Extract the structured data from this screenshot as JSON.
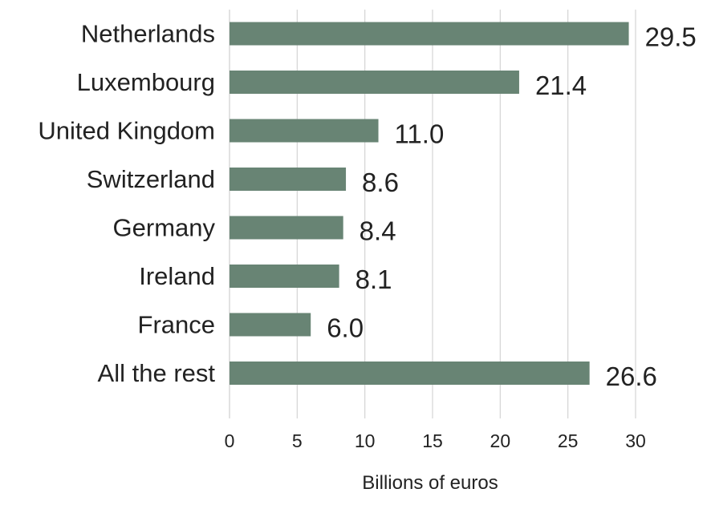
{
  "chart_data": {
    "type": "bar",
    "orientation": "horizontal",
    "categories": [
      "Netherlands",
      "Luxembourg",
      "United Kingdom",
      "Switzerland",
      "Germany",
      "Ireland",
      "France",
      "All the rest"
    ],
    "values": [
      29.5,
      21.4,
      11.0,
      8.6,
      8.4,
      8.1,
      6.0,
      26.6
    ],
    "value_labels": [
      "29.5",
      "21.4",
      "11.0",
      "8.6",
      "8.4",
      "8.1",
      "6.0",
      "26.6"
    ],
    "xlabel": "Billions of euros",
    "xlim": [
      0,
      30
    ],
    "xticks": [
      "0",
      "5",
      "10",
      "15",
      "20",
      "25",
      "30"
    ],
    "grid": "vertical",
    "bar_color": "#688474",
    "grid_color": "#d4d4d4"
  }
}
